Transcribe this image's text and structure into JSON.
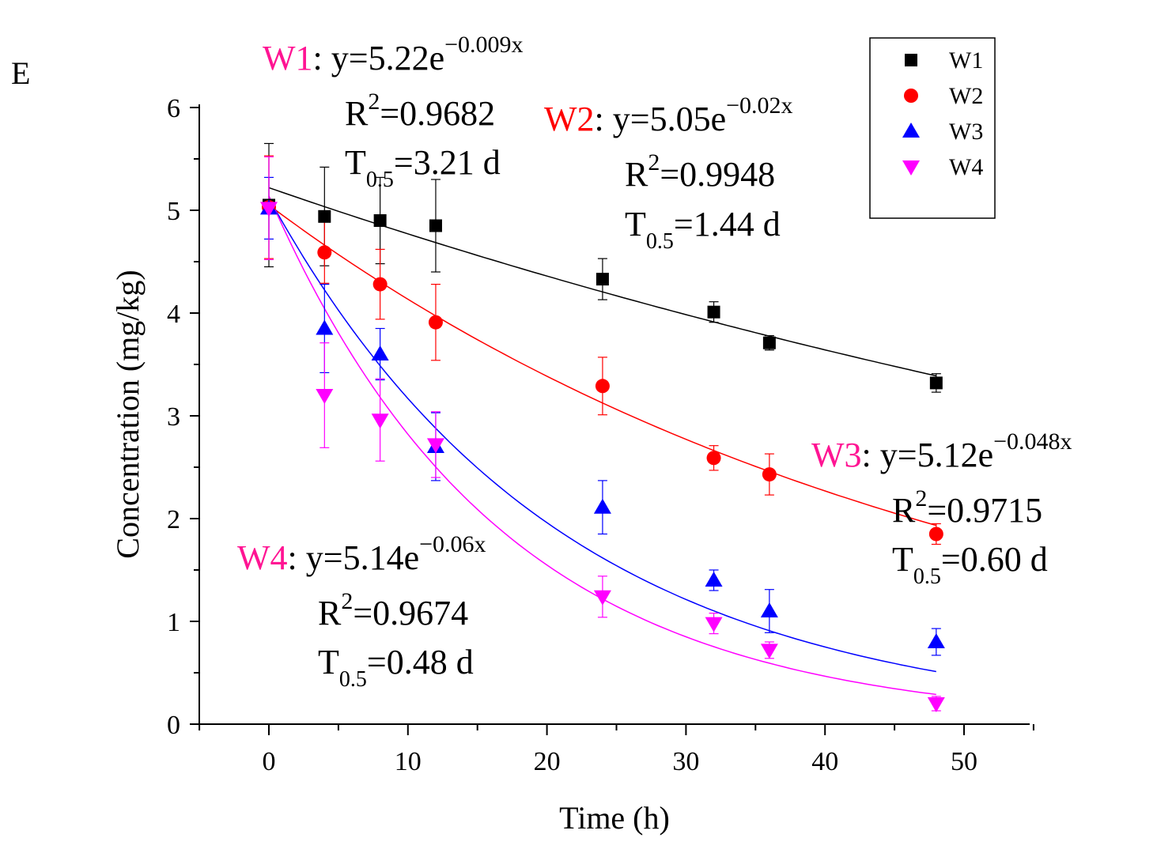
{
  "panel_label": "E",
  "chart_data": {
    "type": "scatter",
    "xlabel": "Time (h)",
    "ylabel": "Concentration (mg/kg)",
    "xlim": [
      -5,
      55
    ],
    "ylim": [
      0,
      6
    ],
    "xticks": [
      0,
      10,
      20,
      30,
      40,
      50
    ],
    "yticks": [
      0,
      1,
      2,
      3,
      4,
      5,
      6
    ],
    "x": [
      0,
      4,
      8,
      12,
      24,
      32,
      36,
      48
    ],
    "series": [
      {
        "name": "W1",
        "color": "#000000",
        "marker": "square",
        "values": [
          5.05,
          4.94,
          4.9,
          4.85,
          4.33,
          4.01,
          3.71,
          3.32
        ],
        "errors": [
          0.6,
          0.48,
          0.42,
          0.45,
          0.2,
          0.1,
          0.07,
          0.09
        ],
        "fit": {
          "a": 5.22,
          "k": 0.009,
          "name": "W1",
          "eq": ": y=5.22e",
          "exp": "−0.009x",
          "r2_label": "=0.9682",
          "t_label": "=3.21 d"
        }
      },
      {
        "name": "W2",
        "color": "#ff0000",
        "marker": "circle",
        "values": [
          5.03,
          4.59,
          4.28,
          3.91,
          3.29,
          2.59,
          2.43,
          1.85
        ],
        "errors": [
          0.5,
          0.3,
          0.34,
          0.37,
          0.28,
          0.12,
          0.2,
          0.1
        ],
        "fit": {
          "a": 5.05,
          "k": 0.02,
          "name": "W2",
          "eq": ": y=5.05e",
          "exp": "−0.02x",
          "r2_label": "=0.9948",
          "t_label": "=1.44 d"
        }
      },
      {
        "name": "W3",
        "color": "#0000ff",
        "marker": "triangle-up",
        "values": [
          5.02,
          3.85,
          3.6,
          2.7,
          2.11,
          1.4,
          1.1,
          0.8
        ],
        "errors": [
          0.3,
          0.43,
          0.25,
          0.33,
          0.26,
          0.1,
          0.21,
          0.13
        ],
        "fit": {
          "a": 5.12,
          "k": 0.048,
          "name": "W3",
          "eq": ": y=5.12e",
          "exp": "−0.048x",
          "r2_label": "=0.9715",
          "t_label": "=0.60 d"
        }
      },
      {
        "name": "W4",
        "color": "#ff00ff",
        "marker": "triangle-down",
        "values": [
          5.02,
          3.2,
          2.96,
          2.72,
          1.24,
          0.98,
          0.72,
          0.2
        ],
        "errors": [
          0.5,
          0.51,
          0.4,
          0.32,
          0.2,
          0.1,
          0.08,
          0.07
        ],
        "fit": {
          "a": 5.14,
          "k": 0.06,
          "name": "W4",
          "eq": ": y=5.14e",
          "exp": "−0.06x",
          "r2_label": "=0.9674",
          "t_label": "=0.48 d"
        }
      }
    ],
    "legend_position": "top-right",
    "label_colors": {
      "W1": "#ff1493",
      "W2": "#ff0000",
      "W3": "#ff1493",
      "W4": "#ff1493"
    },
    "r2_prefix": "R",
    "r2_exp": "2",
    "t_prefix": "T",
    "t_sub": "0.5"
  }
}
